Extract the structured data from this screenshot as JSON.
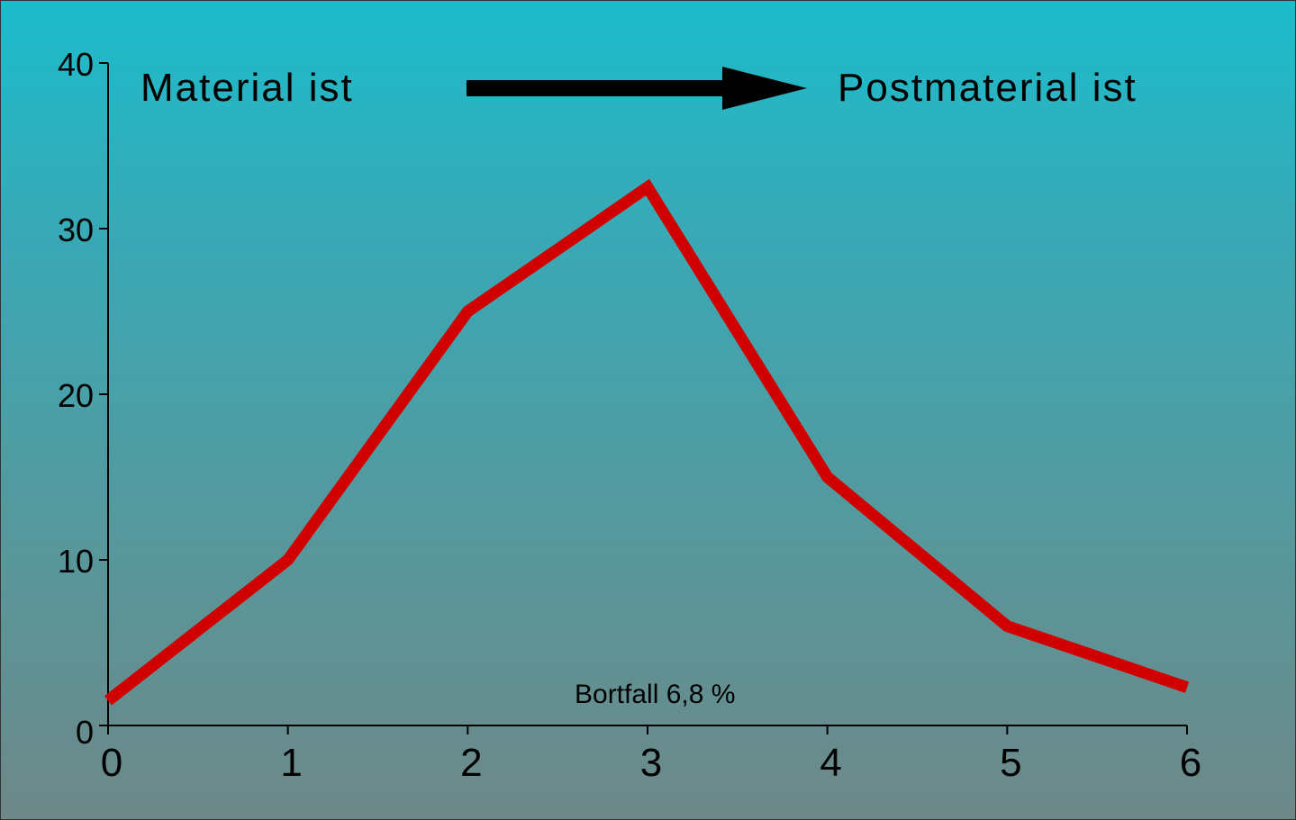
{
  "chart_data": {
    "type": "line",
    "x": [
      0,
      1,
      2,
      3,
      4,
      5,
      6
    ],
    "series": [
      {
        "values": [
          1.5,
          10,
          25,
          32.5,
          15,
          6,
          2.3
        ],
        "color": "#d00000"
      }
    ],
    "xticks": [
      "0",
      "1",
      "2",
      "3",
      "4",
      "5",
      "6"
    ],
    "yticks": [
      "0",
      "10",
      "20",
      "30",
      "40"
    ],
    "xlim": [
      0,
      6
    ],
    "ylim": [
      0,
      40
    ],
    "title": "",
    "xlabel": "",
    "ylabel": "",
    "grid": false,
    "annotations": {
      "left_label": "Material ist",
      "right_label": "Postmaterial ist",
      "arrow": "right-arrow",
      "dropout": "Bortfall 6,8 %"
    }
  }
}
